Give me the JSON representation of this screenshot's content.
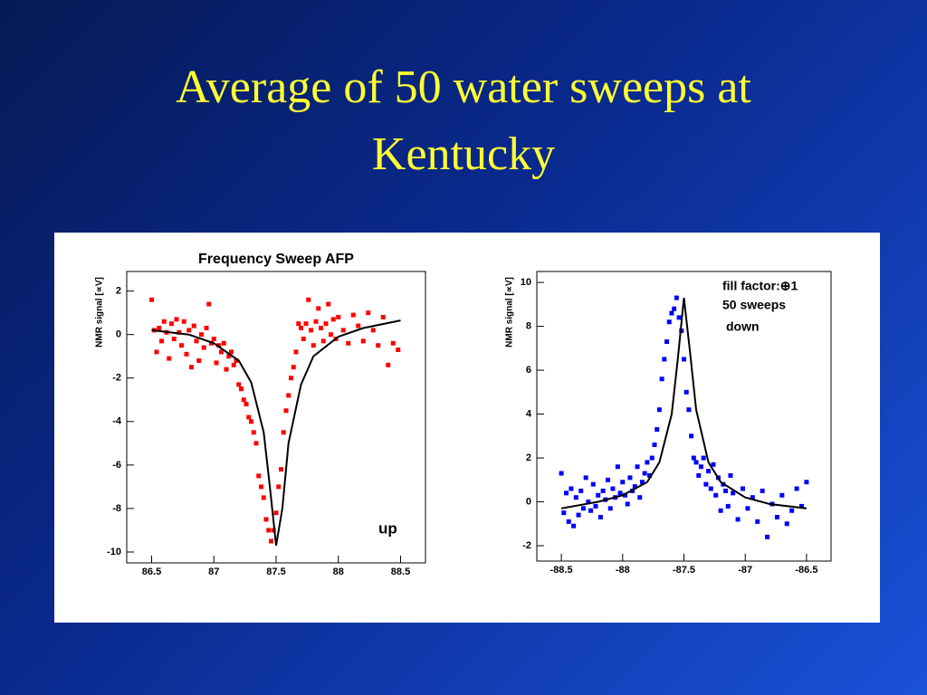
{
  "title": "Average of 50 water sweeps at Kentucky",
  "chart_data": [
    {
      "type": "scatter",
      "title": "Frequency Sweep AFP",
      "ylabel": "NMR signal [∝V]",
      "xlim": [
        86.3,
        88.7
      ],
      "xticks": [
        86.5,
        87,
        87.5,
        88,
        88.5
      ],
      "ylim": [
        -10.5,
        2.9
      ],
      "yticks": [
        2,
        0,
        -2,
        -4,
        -6,
        -8,
        -10
      ],
      "annotations": [
        "up"
      ],
      "series": [
        {
          "mode": "markers",
          "color": "#ff0000",
          "x": [
            86.5,
            86.52,
            86.54,
            86.56,
            86.58,
            86.6,
            86.62,
            86.64,
            86.66,
            86.68,
            86.7,
            86.72,
            86.74,
            86.76,
            86.78,
            86.8,
            86.82,
            86.84,
            86.86,
            86.88,
            86.9,
            86.92,
            86.94,
            86.96,
            86.98,
            87.0,
            87.02,
            87.04,
            87.06,
            87.08,
            87.1,
            87.12,
            87.14,
            87.16,
            87.18,
            87.2,
            87.22,
            87.24,
            87.26,
            87.28,
            87.3,
            87.32,
            87.34,
            87.36,
            87.38,
            87.4,
            87.42,
            87.44,
            87.46,
            87.48,
            87.5,
            87.52,
            87.54,
            87.56,
            87.58,
            87.6,
            87.62,
            87.64,
            87.66,
            87.68,
            87.7,
            87.72,
            87.74,
            87.76,
            87.78,
            87.8,
            87.82,
            87.84,
            87.86,
            87.88,
            87.9,
            87.92,
            87.94,
            87.96,
            87.98,
            88.0,
            88.04,
            88.08,
            88.12,
            88.16,
            88.2,
            88.24,
            88.28,
            88.32,
            88.36,
            88.4,
            88.44,
            88.48
          ],
          "values": [
            1.6,
            0.2,
            -0.8,
            0.3,
            -0.3,
            0.6,
            0.1,
            -1.1,
            0.5,
            -0.2,
            0.7,
            0.1,
            -0.5,
            0.6,
            -0.9,
            0.2,
            -1.5,
            0.4,
            -0.3,
            -1.2,
            0.0,
            -0.6,
            0.3,
            1.4,
            -0.4,
            -0.2,
            -1.3,
            -0.5,
            -0.8,
            -0.4,
            -1.6,
            -1.0,
            -0.8,
            -1.4,
            -1.2,
            -2.3,
            -2.5,
            -3.0,
            -3.2,
            -3.8,
            -4.0,
            -4.5,
            -5.0,
            -6.5,
            -7.0,
            -7.5,
            -8.5,
            -9.0,
            -9.5,
            -9.0,
            -8.2,
            -7.0,
            -6.2,
            -4.5,
            -3.5,
            -2.8,
            -2.0,
            -1.5,
            -0.8,
            0.5,
            0.3,
            -0.2,
            0.5,
            1.6,
            0.2,
            -0.5,
            0.6,
            1.2,
            0.3,
            -0.3,
            0.5,
            1.4,
            0.0,
            0.7,
            -0.2,
            0.8,
            0.2,
            -0.4,
            0.9,
            0.4,
            -0.3,
            1.0,
            0.2,
            -0.5,
            0.8,
            -1.4,
            -0.4,
            -0.7
          ]
        },
        {
          "mode": "line",
          "color": "#000000",
          "x": [
            86.5,
            86.8,
            87.0,
            87.2,
            87.3,
            87.4,
            87.45,
            87.5,
            87.55,
            87.6,
            87.7,
            87.8,
            88.0,
            88.2,
            88.5
          ],
          "values": [
            0.2,
            0.0,
            -0.4,
            -1.2,
            -2.2,
            -4.5,
            -7.0,
            -9.7,
            -8.0,
            -5.0,
            -2.3,
            -1.0,
            -0.1,
            0.3,
            0.65
          ]
        }
      ]
    },
    {
      "type": "scatter",
      "ylabel": "NMR signal [∝V]",
      "xlim": [
        -88.7,
        -86.3
      ],
      "xticks": [
        -88.5,
        -88,
        -87.5,
        -87,
        -86.5
      ],
      "ylim": [
        -2.7,
        10.5
      ],
      "yticks": [
        10,
        8,
        6,
        4,
        2,
        0,
        -2
      ],
      "annotations": [
        "fill factor:⊕1",
        "50 sweeps",
        "down"
      ],
      "series": [
        {
          "mode": "markers",
          "color": "#0000ff",
          "x": [
            -88.5,
            -88.48,
            -88.46,
            -88.44,
            -88.42,
            -88.4,
            -88.38,
            -88.36,
            -88.34,
            -88.32,
            -88.3,
            -88.28,
            -88.26,
            -88.24,
            -88.22,
            -88.2,
            -88.18,
            -88.16,
            -88.14,
            -88.12,
            -88.1,
            -88.08,
            -88.06,
            -88.04,
            -88.02,
            -88.0,
            -87.98,
            -87.96,
            -87.94,
            -87.92,
            -87.9,
            -87.88,
            -87.86,
            -87.84,
            -87.82,
            -87.8,
            -87.78,
            -87.76,
            -87.74,
            -87.72,
            -87.7,
            -87.68,
            -87.66,
            -87.64,
            -87.62,
            -87.6,
            -87.58,
            -87.56,
            -87.54,
            -87.52,
            -87.5,
            -87.48,
            -87.46,
            -87.44,
            -87.42,
            -87.4,
            -87.38,
            -87.36,
            -87.34,
            -87.32,
            -87.3,
            -87.28,
            -87.26,
            -87.24,
            -87.22,
            -87.2,
            -87.18,
            -87.16,
            -87.14,
            -87.12,
            -87.1,
            -87.06,
            -87.02,
            -86.98,
            -86.94,
            -86.9,
            -86.86,
            -86.82,
            -86.78,
            -86.74,
            -86.7,
            -86.66,
            -86.62,
            -86.58,
            -86.54,
            -86.5
          ],
          "values": [
            1.3,
            -0.5,
            0.4,
            -0.9,
            0.6,
            -1.1,
            0.2,
            -0.6,
            0.5,
            -0.3,
            1.1,
            0.0,
            -0.4,
            0.8,
            -0.2,
            0.3,
            -0.7,
            0.5,
            0.1,
            1.0,
            -0.3,
            0.6,
            0.2,
            1.6,
            0.4,
            0.9,
            0.3,
            -0.1,
            1.1,
            0.5,
            0.7,
            1.6,
            0.2,
            0.9,
            1.3,
            1.8,
            1.2,
            2.0,
            2.6,
            3.3,
            4.2,
            5.6,
            6.5,
            7.3,
            8.2,
            8.6,
            8.8,
            9.3,
            8.4,
            7.8,
            6.5,
            5.0,
            4.2,
            3.0,
            2.0,
            1.8,
            1.2,
            1.6,
            2.0,
            0.8,
            1.4,
            0.6,
            1.7,
            0.3,
            1.1,
            -0.4,
            0.8,
            0.5,
            -0.2,
            1.2,
            0.4,
            -0.8,
            0.6,
            -0.3,
            0.2,
            -0.9,
            0.5,
            -1.6,
            -0.1,
            -0.7,
            0.3,
            -1.0,
            -0.4,
            0.6,
            -0.2,
            0.9
          ]
        },
        {
          "mode": "line",
          "color": "#000000",
          "x": [
            -88.5,
            -88.2,
            -88.0,
            -87.8,
            -87.7,
            -87.6,
            -87.55,
            -87.5,
            -87.45,
            -87.4,
            -87.3,
            -87.2,
            -87.0,
            -86.8,
            -86.5
          ],
          "values": [
            -0.3,
            0.0,
            0.3,
            0.9,
            1.8,
            4.0,
            6.5,
            9.3,
            6.8,
            4.2,
            1.8,
            0.9,
            0.2,
            -0.1,
            -0.3
          ]
        }
      ]
    }
  ]
}
